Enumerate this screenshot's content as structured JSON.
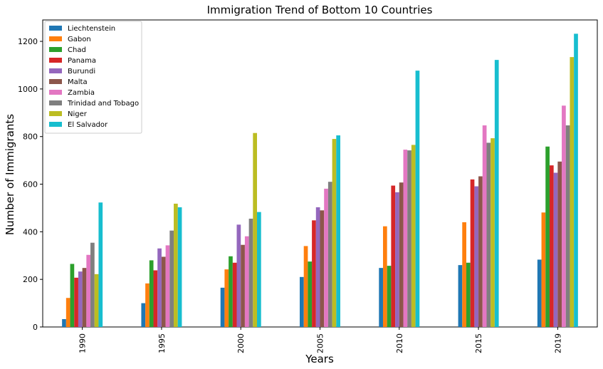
{
  "chart_data": {
    "type": "bar",
    "title": "Immigration Trend of Bottom 10 Countries",
    "xlabel": "Years",
    "ylabel": "Number of Immigrants",
    "categories": [
      "1990",
      "1995",
      "2000",
      "2005",
      "2010",
      "2015",
      "2019"
    ],
    "ylim": [
      0,
      1290
    ],
    "yticks": [
      0,
      200,
      400,
      600,
      800,
      1000,
      1200
    ],
    "legend_position": "top-left",
    "grid": false,
    "series": [
      {
        "name": "Liechtenstein",
        "color": "#1f77b4",
        "values": [
          33,
          100,
          165,
          210,
          248,
          260,
          283
        ]
      },
      {
        "name": "Gabon",
        "color": "#ff7f0e",
        "values": [
          122,
          183,
          242,
          340,
          423,
          440,
          481
        ]
      },
      {
        "name": "Chad",
        "color": "#2ca02c",
        "values": [
          265,
          280,
          297,
          275,
          257,
          270,
          758
        ]
      },
      {
        "name": "Panama",
        "color": "#d62728",
        "values": [
          207,
          238,
          270,
          448,
          594,
          620,
          679
        ]
      },
      {
        "name": "Burundi",
        "color": "#9467bd",
        "values": [
          233,
          330,
          430,
          503,
          566,
          591,
          648
        ]
      },
      {
        "name": "Malta",
        "color": "#8c564b",
        "values": [
          248,
          295,
          345,
          490,
          607,
          633,
          695
        ]
      },
      {
        "name": "Zambia",
        "color": "#e377c2",
        "values": [
          303,
          343,
          381,
          581,
          745,
          847,
          930
        ]
      },
      {
        "name": "Trinidad and Tobago",
        "color": "#7f7f7f",
        "values": [
          354,
          405,
          455,
          610,
          742,
          774,
          847
        ]
      },
      {
        "name": "Niger",
        "color": "#bcbd22",
        "values": [
          222,
          518,
          815,
          790,
          765,
          793,
          1134
        ]
      },
      {
        "name": "El Salvador",
        "color": "#17becf",
        "values": [
          523,
          503,
          483,
          805,
          1077,
          1122,
          1232
        ]
      }
    ]
  }
}
